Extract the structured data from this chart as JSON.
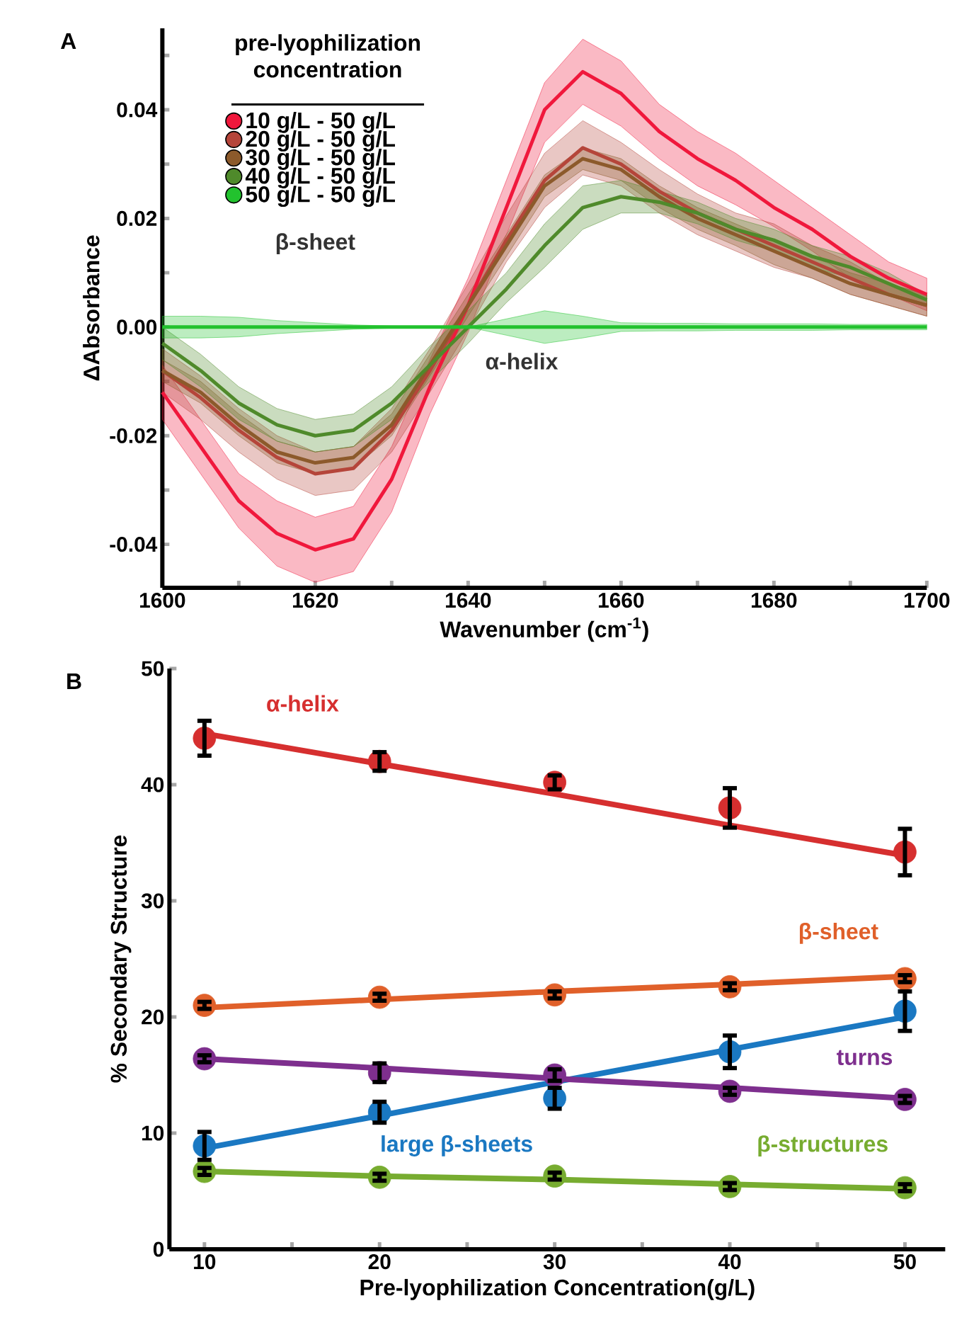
{
  "chart_data": [
    {
      "type": "line",
      "xlabel": "Wavenumber (cm$^{-1}$)",
      "ylabel": "ΔAbsorbance",
      "legend_title": "pre-lyophilization concentration",
      "legend": "top left",
      "annotations": [
        "A",
        "β-sheet",
        "α-helix"
      ],
      "xlim": [
        1600,
        1700
      ],
      "ylim": [
        -0.048,
        0.055
      ],
      "xticks": [
        1600,
        {
          "value": 1610,
          "label": null
        },
        1620,
        {
          "value": 1630,
          "label": null
        },
        1640,
        {
          "value": 1650,
          "label": null
        },
        1660,
        {
          "value": 1670,
          "label": null
        },
        1680,
        {
          "value": 1690,
          "label": null
        },
        1700
      ],
      "yticks": [
        -0.04,
        {
          "value": -0.03,
          "label": null
        },
        -0.02,
        {
          "value": -0.01,
          "label": null
        },
        {
          "value": 0,
          "label": "0.00"
        },
        {
          "value": 0.01,
          "label": null
        },
        0.02,
        {
          "value": 0.03,
          "label": null
        },
        0.04,
        {
          "value": 0.05,
          "label": null
        }
      ],
      "x": [
        1600,
        1605,
        1610,
        1615,
        1620,
        1625,
        1630,
        1635,
        1640,
        1645,
        1650,
        1655,
        1660,
        1665,
        1670,
        1675,
        1680,
        1685,
        1690,
        1695,
        1700
      ],
      "series": [
        {
          "name": "10 g/L - 50 g/L",
          "color": "#f0183c",
          "values": [
            -0.012,
            -0.022,
            -0.032,
            -0.038,
            -0.041,
            -0.039,
            -0.028,
            -0.011,
            0.004,
            0.022,
            0.04,
            0.047,
            0.043,
            0.036,
            0.031,
            0.027,
            0.022,
            0.018,
            0.013,
            0.009,
            0.006
          ],
          "lower": [
            -0.017,
            -0.027,
            -0.037,
            -0.044,
            -0.047,
            -0.045,
            -0.034,
            -0.016,
            -0.001,
            0.017,
            0.034,
            0.041,
            0.037,
            0.031,
            0.026,
            0.0225,
            0.0185,
            0.014,
            0.009,
            0.006,
            0.003
          ],
          "upper": [
            -0.007,
            -0.017,
            -0.027,
            -0.032,
            -0.035,
            -0.033,
            -0.022,
            -0.006,
            0.009,
            0.027,
            0.045,
            0.053,
            0.049,
            0.041,
            0.036,
            0.032,
            0.027,
            0.022,
            0.017,
            0.012,
            0.009
          ]
        },
        {
          "name": "20 g/L - 50 g/L",
          "color": "#b5453a",
          "values": [
            -0.008,
            -0.013,
            -0.019,
            -0.024,
            -0.027,
            -0.026,
            -0.019,
            -0.008,
            0.004,
            0.016,
            0.027,
            0.033,
            0.03,
            0.025,
            0.021,
            0.018,
            0.015,
            0.012,
            0.009,
            0.006,
            0.004
          ],
          "lower": [
            -0.012,
            -0.017,
            -0.023,
            -0.028,
            -0.031,
            -0.03,
            -0.023,
            -0.012,
            -0.0005,
            0.012,
            0.022,
            0.028,
            0.026,
            0.021,
            0.017,
            0.014,
            0.011,
            0.009,
            0.006,
            0.004,
            0.002
          ],
          "upper": [
            -0.004,
            -0.009,
            -0.015,
            -0.02,
            -0.023,
            -0.022,
            -0.015,
            -0.004,
            0.008,
            0.0205,
            0.032,
            0.038,
            0.034,
            0.029,
            0.0245,
            0.021,
            0.019,
            0.015,
            0.012,
            0.008,
            0.006
          ]
        },
        {
          "name": "30 g/L - 50 g/L",
          "color": "#8c5a2b",
          "values": [
            -0.008,
            -0.012,
            -0.018,
            -0.023,
            -0.025,
            -0.024,
            -0.018,
            -0.007,
            0.004,
            0.015,
            0.026,
            0.031,
            0.029,
            0.024,
            0.02,
            0.017,
            0.014,
            0.011,
            0.008,
            0.006,
            0.004
          ],
          "lower": [
            -0.01,
            -0.014,
            -0.02,
            -0.025,
            -0.027,
            -0.026,
            -0.02,
            -0.009,
            0.002,
            0.013,
            0.024,
            0.029,
            0.027,
            0.022,
            0.018,
            0.015,
            0.0115,
            0.009,
            0.006,
            0.004,
            0.002
          ],
          "upper": [
            -0.006,
            -0.01,
            -0.016,
            -0.021,
            -0.023,
            -0.022,
            -0.016,
            -0.005,
            0.006,
            0.017,
            0.028,
            0.033,
            0.031,
            0.026,
            0.022,
            0.019,
            0.016,
            0.013,
            0.01,
            0.008,
            0.006
          ]
        },
        {
          "name": "40 g/L - 50 g/L",
          "color": "#4f8a2b",
          "values": [
            -0.003,
            -0.008,
            -0.014,
            -0.018,
            -0.02,
            -0.019,
            -0.014,
            -0.007,
            0.0,
            0.007,
            0.015,
            0.022,
            0.024,
            0.023,
            0.021,
            0.018,
            0.016,
            0.013,
            0.011,
            0.008,
            0.005
          ],
          "lower": [
            -0.006,
            -0.011,
            -0.017,
            -0.021,
            -0.023,
            -0.022,
            -0.017,
            -0.01,
            -0.003,
            0.0045,
            0.011,
            0.018,
            0.021,
            0.021,
            0.019,
            0.016,
            0.014,
            0.011,
            0.009,
            0.006,
            0.004
          ],
          "upper": [
            0.0,
            -0.005,
            -0.011,
            -0.015,
            -0.017,
            -0.016,
            -0.011,
            -0.0035,
            0.003,
            0.01,
            0.019,
            0.026,
            0.027,
            0.025,
            0.023,
            0.02,
            0.018,
            0.015,
            0.013,
            0.01,
            0.006
          ]
        },
        {
          "name": "50 g/L - 50 g/L",
          "color": "#22c22e",
          "values": [
            0,
            0,
            0,
            0,
            0,
            0,
            0,
            0,
            0,
            0,
            0,
            0,
            0,
            0,
            0,
            0,
            0,
            0,
            0,
            0,
            0
          ],
          "lower": [
            -0.002,
            -0.002,
            -0.0018,
            -0.0012,
            -0.0008,
            -0.0004,
            -0.0002,
            -0.0001,
            0,
            -0.0015,
            -0.003,
            -0.002,
            -0.0008,
            -0.0007,
            -0.0007,
            -0.0006,
            -0.0006,
            -0.0006,
            -0.0005,
            -0.0005,
            -0.0005
          ],
          "upper": [
            0.002,
            0.002,
            0.0018,
            0.0012,
            0.0008,
            0.0004,
            0.0002,
            0.0001,
            0,
            0.0015,
            0.003,
            0.002,
            0.0008,
            0.0007,
            0.0007,
            0.0006,
            0.0006,
            0.0006,
            0.0005,
            0.0005,
            0.0005
          ]
        }
      ]
    },
    {
      "type": "scatter",
      "xlabel": "Pre-lyophilization Concentration(g/L)",
      "ylabel": "% Secondary Structure",
      "annotations": [
        "B"
      ],
      "xlim": [
        8,
        52.3
      ],
      "ylim": [
        0,
        50
      ],
      "xticks": [
        10,
        {
          "value": 15,
          "label": null
        },
        20,
        {
          "value": 25,
          "label": null
        },
        30,
        {
          "value": 35,
          "label": null
        },
        40,
        {
          "value": 45,
          "label": null
        },
        50
      ],
      "yticks": [
        0,
        10,
        20,
        30,
        40,
        50
      ],
      "x": [
        10,
        20,
        30,
        40,
        50
      ],
      "series": [
        {
          "type": "line",
          "marker": "none",
          "color": "#d62f2f",
          "values": [
            44.4,
            41.8,
            39.2,
            36.5,
            33.9
          ]
        },
        {
          "type": "line",
          "marker": "none",
          "color": "#e0602a",
          "values": [
            20.8,
            21.5,
            22.2,
            22.8,
            23.5
          ]
        },
        {
          "type": "line",
          "marker": "none",
          "color": "#1a78c2",
          "values": [
            8.7,
            11.5,
            14.4,
            17.2,
            20
          ]
        },
        {
          "type": "line",
          "marker": "none",
          "color": "#7e2f8e",
          "values": [
            16.4,
            15.6,
            14.7,
            13.9,
            13
          ]
        },
        {
          "type": "line",
          "marker": "none",
          "color": "#77ac30",
          "values": [
            6.7,
            6.3,
            6.0,
            5.6,
            5.2
          ]
        },
        {
          "name": "α-helix",
          "marker": "circle",
          "color": "#d62f2f",
          "values": [
            44,
            42,
            40.2,
            38,
            34.2
          ],
          "errors": [
            1.5,
            0.8,
            0.6,
            1.7,
            2
          ]
        },
        {
          "name": "β-sheet",
          "marker": "circle",
          "color": "#e0602a",
          "values": [
            21,
            21.7,
            21.9,
            22.6,
            23.3
          ],
          "errors": [
            0.3,
            0.3,
            0.3,
            0.3,
            0.3
          ]
        },
        {
          "name": "large β-sheets",
          "marker": "circle",
          "color": "#1a78c2",
          "values": [
            8.9,
            11.8,
            13,
            17,
            20.5
          ],
          "errors": [
            1.2,
            0.9,
            0.9,
            1.4,
            1.7
          ]
        },
        {
          "name": "turns",
          "marker": "circle",
          "color": "#7e2f8e",
          "values": [
            16.4,
            15.2,
            15,
            13.6,
            12.9
          ],
          "errors": [
            0.3,
            0.8,
            0.5,
            0.3,
            0.3
          ]
        },
        {
          "name": "β-structures",
          "marker": "circle",
          "color": "#77ac30",
          "values": [
            6.7,
            6.2,
            6.3,
            5.4,
            5.3
          ],
          "errors": [
            0.3,
            0.3,
            0.3,
            0.3,
            0.3
          ]
        }
      ]
    }
  ]
}
